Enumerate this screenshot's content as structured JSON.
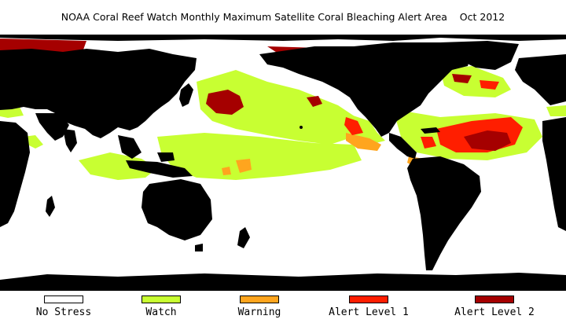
{
  "title": "NOAA Coral Reef Watch Monthly Maximum Satellite Coral Bleaching Alert Area    Oct 2012",
  "colors": {
    "land": "#000000",
    "no_stress": "#ffffff",
    "watch": "#c8ff32",
    "warning": "#ffa51e",
    "alert_level_1": "#ff1e00",
    "alert_level_2": "#a50000"
  },
  "legend": [
    {
      "label": "No Stress",
      "color": "#ffffff"
    },
    {
      "label": "Watch",
      "color": "#c8ff32"
    },
    {
      "label": "Warning",
      "color": "#ffa51e"
    },
    {
      "label": "Alert Level 1",
      "color": "#ff1e00"
    },
    {
      "label": "Alert Level 2",
      "color": "#a50000"
    }
  ]
}
